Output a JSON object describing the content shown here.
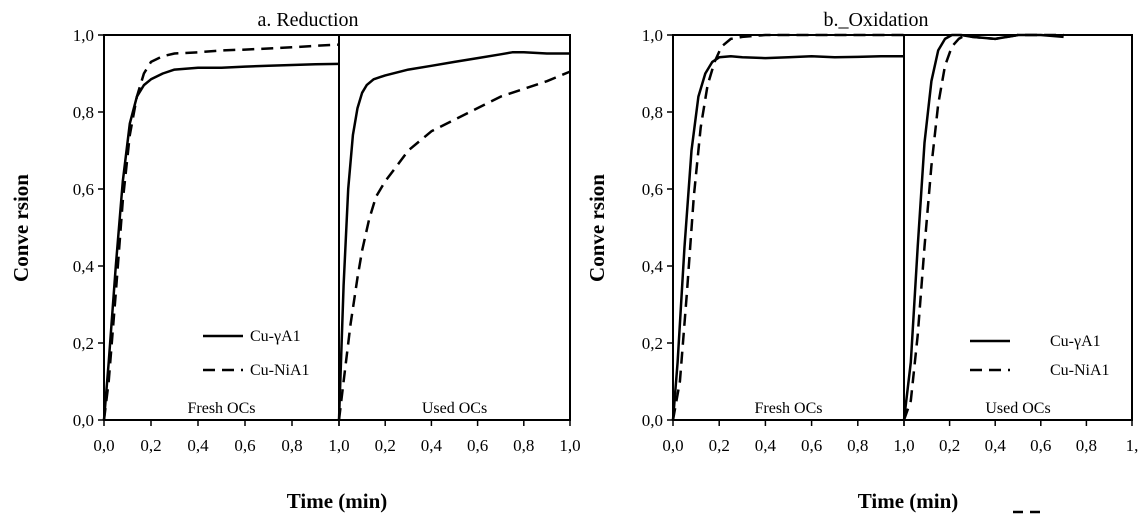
{
  "chart_data": [
    {
      "type": "line",
      "title": "a. Reduction",
      "ylabel": "Conve rsion",
      "xlabel": "Time (min)",
      "ylim": [
        0,
        1
      ],
      "yticks": [
        "0,0",
        "0,2",
        "0,4",
        "0,6",
        "0,8",
        "1,0"
      ],
      "grid": false,
      "legend_position": "bottom-right of left panel",
      "panels": [
        {
          "label": "Fresh OCs",
          "xlim": [
            0,
            1
          ],
          "xticks": [
            "0,0",
            "0,2",
            "0,4",
            "0,6",
            "0,8",
            "1,0"
          ],
          "series": [
            {
              "name": "Cu-γA1",
              "style": "solid",
              "x": [
                0,
                0.02,
                0.05,
                0.08,
                0.11,
                0.14,
                0.17,
                0.2,
                0.25,
                0.3,
                0.4,
                0.5,
                0.6,
                0.7,
                0.8,
                0.9,
                1.0
              ],
              "y": [
                0,
                0.15,
                0.4,
                0.62,
                0.77,
                0.84,
                0.87,
                0.885,
                0.9,
                0.91,
                0.915,
                0.915,
                0.918,
                0.92,
                0.922,
                0.924,
                0.925
              ]
            },
            {
              "name": "Cu-NiA1",
              "style": "dashed",
              "x": [
                0,
                0.02,
                0.05,
                0.08,
                0.11,
                0.14,
                0.17,
                0.2,
                0.25,
                0.3,
                0.4,
                0.5,
                0.6,
                0.7,
                0.8,
                0.9,
                1.0
              ],
              "y": [
                0,
                0.1,
                0.33,
                0.57,
                0.74,
                0.84,
                0.9,
                0.93,
                0.945,
                0.952,
                0.955,
                0.96,
                0.962,
                0.965,
                0.968,
                0.972,
                0.975
              ]
            }
          ]
        },
        {
          "label": "Used OCs",
          "xlim": [
            0,
            1
          ],
          "xticks": [
            "0,2",
            "0,4",
            "0,6",
            "0,8",
            "1,0"
          ],
          "series": [
            {
              "name": "Cu-γA1",
              "style": "solid",
              "x": [
                0,
                0.02,
                0.04,
                0.06,
                0.08,
                0.1,
                0.12,
                0.15,
                0.2,
                0.3,
                0.4,
                0.5,
                0.6,
                0.7,
                0.75,
                0.8,
                0.9,
                1.0
              ],
              "y": [
                0,
                0.35,
                0.6,
                0.74,
                0.81,
                0.85,
                0.87,
                0.885,
                0.895,
                0.91,
                0.92,
                0.93,
                0.94,
                0.95,
                0.955,
                0.955,
                0.952,
                0.952
              ]
            },
            {
              "name": "Cu-NiA1",
              "style": "dashed",
              "x": [
                0,
                0.02,
                0.05,
                0.08,
                0.1,
                0.13,
                0.16,
                0.2,
                0.25,
                0.3,
                0.4,
                0.5,
                0.6,
                0.7,
                0.8,
                0.9,
                1.0
              ],
              "y": [
                0,
                0.1,
                0.25,
                0.37,
                0.44,
                0.52,
                0.58,
                0.62,
                0.66,
                0.7,
                0.75,
                0.78,
                0.81,
                0.84,
                0.86,
                0.88,
                0.905
              ]
            }
          ]
        }
      ]
    },
    {
      "type": "line",
      "title": "b._Oxidation",
      "ylabel": "Conve rsion",
      "xlabel": "Time (min)",
      "ylim": [
        0,
        1
      ],
      "yticks": [
        "0,0",
        "0,2",
        "0,4",
        "0,6",
        "0,8",
        "1,0"
      ],
      "grid": false,
      "legend_position": "bottom-right of right panel",
      "panels": [
        {
          "label": "Fresh OCs",
          "xlim": [
            0,
            1
          ],
          "xticks": [
            "0,0",
            "0,2",
            "0,4",
            "0,6",
            "0,8",
            "1,0"
          ],
          "series": [
            {
              "name": "Cu-γA1",
              "style": "solid",
              "x": [
                0,
                0.02,
                0.05,
                0.08,
                0.11,
                0.14,
                0.17,
                0.2,
                0.25,
                0.3,
                0.4,
                0.5,
                0.6,
                0.7,
                0.8,
                0.9,
                1.0
              ],
              "y": [
                0,
                0.15,
                0.45,
                0.7,
                0.84,
                0.9,
                0.93,
                0.942,
                0.945,
                0.942,
                0.94,
                0.942,
                0.945,
                0.942,
                0.943,
                0.945,
                0.945
              ]
            },
            {
              "name": "Cu-NiA1",
              "style": "dashed",
              "x": [
                0,
                0.03,
                0.06,
                0.09,
                0.12,
                0.15,
                0.18,
                0.21,
                0.25,
                0.3,
                0.4,
                0.5,
                0.6,
                0.7,
                0.8,
                0.9,
                1.0
              ],
              "y": [
                0,
                0.1,
                0.33,
                0.58,
                0.76,
                0.87,
                0.93,
                0.97,
                0.99,
                0.995,
                1.0,
                1.0,
                1.0,
                1.0,
                1.0,
                1.0,
                1.0
              ]
            }
          ]
        },
        {
          "label": "Used OCs",
          "xlim": [
            0,
            1
          ],
          "xticks": [
            "0,2",
            "0,4",
            "0,6",
            "0,8",
            "1,"
          ],
          "series": [
            {
              "name": "Cu-γA1",
              "style": "solid",
              "x": [
                0,
                0.03,
                0.06,
                0.09,
                0.12,
                0.15,
                0.18,
                0.21,
                0.25,
                0.3,
                0.4,
                0.5,
                0.6,
                0.7
              ],
              "y": [
                0,
                0.15,
                0.45,
                0.72,
                0.88,
                0.96,
                0.99,
                1.0,
                1.0,
                0.995,
                0.99,
                1.0,
                1.0,
                0.995
              ]
            },
            {
              "name": "Cu-NiA1",
              "style": "dashed",
              "x": [
                0,
                0.03,
                0.06,
                0.09,
                0.12,
                0.15,
                0.18,
                0.21,
                0.24,
                0.27,
                0.3,
                0.4,
                0.5,
                0.6,
                0.7
              ],
              "y": [
                0,
                0.05,
                0.22,
                0.45,
                0.66,
                0.82,
                0.92,
                0.97,
                0.99,
                1.0,
                0.995,
                0.99,
                1.0,
                1.0,
                1.0
              ]
            }
          ]
        }
      ]
    }
  ]
}
